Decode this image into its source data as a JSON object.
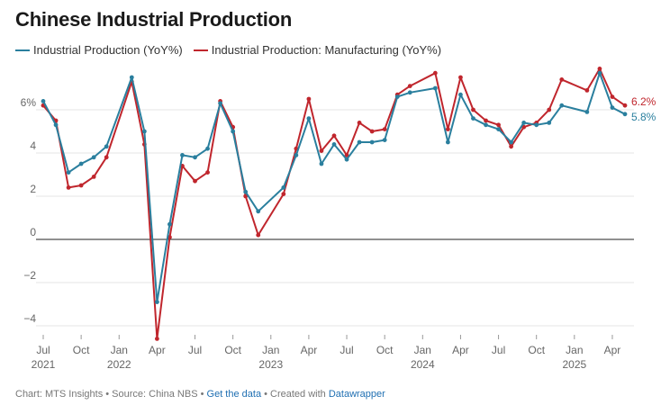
{
  "title": "Chinese Industrial Production",
  "footer": {
    "chart_prefix": "Chart: MTS Insights • Source: China NBS • ",
    "get_data": "Get the data",
    "created_with": " • Created with ",
    "datawrapper": "Datawrapper"
  },
  "colors": {
    "ip": "#2a7f9e",
    "mfg": "#c0262d"
  },
  "chart_data": {
    "type": "line",
    "title": "Chinese Industrial Production",
    "ylim": [
      -4.6,
      7.9
    ],
    "yticks": [
      {
        "value": 6,
        "label": "6%"
      },
      {
        "value": 4,
        "label": "4"
      },
      {
        "value": 2,
        "label": "2"
      },
      {
        "value": 0,
        "label": "0"
      },
      {
        "value": -2,
        "label": "−2"
      },
      {
        "value": -4,
        "label": "−4"
      }
    ],
    "xticks": [
      {
        "i": 0,
        "label": "Jul",
        "year": "2021"
      },
      {
        "i": 3,
        "label": "Oct",
        "year": ""
      },
      {
        "i": 6,
        "label": "Jan",
        "year": "2022"
      },
      {
        "i": 9,
        "label": "Apr",
        "year": ""
      },
      {
        "i": 12,
        "label": "Jul",
        "year": ""
      },
      {
        "i": 15,
        "label": "Oct",
        "year": ""
      },
      {
        "i": 18,
        "label": "Jan",
        "year": "2023"
      },
      {
        "i": 21,
        "label": "Apr",
        "year": ""
      },
      {
        "i": 24,
        "label": "Jul",
        "year": ""
      },
      {
        "i": 27,
        "label": "Oct",
        "year": ""
      },
      {
        "i": 30,
        "label": "Jan",
        "year": "2024"
      },
      {
        "i": 33,
        "label": "Apr",
        "year": ""
      },
      {
        "i": 36,
        "label": "Jul",
        "year": ""
      },
      {
        "i": 39,
        "label": "Oct",
        "year": ""
      },
      {
        "i": 42,
        "label": "Jan",
        "year": "2025"
      },
      {
        "i": 45,
        "label": "Apr",
        "year": ""
      }
    ],
    "series": [
      {
        "name": "Industrial Production (YoY%)",
        "end_label": "5.8%",
        "points": [
          [
            0,
            6.4
          ],
          [
            1,
            5.3
          ],
          [
            2,
            3.1
          ],
          [
            3,
            3.5
          ],
          [
            4,
            3.8
          ],
          [
            5,
            4.3
          ],
          [
            7,
            7.5
          ],
          [
            8,
            5.0
          ],
          [
            9,
            -2.9
          ],
          [
            10,
            0.7
          ],
          [
            11,
            3.9
          ],
          [
            12,
            3.8
          ],
          [
            13,
            4.2
          ],
          [
            14,
            6.3
          ],
          [
            15,
            5.0
          ],
          [
            16,
            2.2
          ],
          [
            17,
            1.3
          ],
          [
            19,
            2.4
          ],
          [
            20,
            3.9
          ],
          [
            21,
            5.6
          ],
          [
            22,
            3.5
          ],
          [
            23,
            4.4
          ],
          [
            24,
            3.7
          ],
          [
            25,
            4.5
          ],
          [
            26,
            4.5
          ],
          [
            27,
            4.6
          ],
          [
            28,
            6.6
          ],
          [
            29,
            6.8
          ],
          [
            31,
            7.0
          ],
          [
            32,
            4.5
          ],
          [
            33,
            6.7
          ],
          [
            34,
            5.6
          ],
          [
            35,
            5.3
          ],
          [
            36,
            5.1
          ],
          [
            37,
            4.5
          ],
          [
            38,
            5.4
          ],
          [
            39,
            5.3
          ],
          [
            40,
            5.4
          ],
          [
            41,
            6.2
          ],
          [
            43,
            5.9
          ],
          [
            44,
            7.7
          ],
          [
            45,
            6.1
          ],
          [
            46,
            5.8
          ]
        ]
      },
      {
        "name": "Industrial Production: Manufacturing (YoY%)",
        "end_label": "6.2%",
        "points": [
          [
            0,
            6.2
          ],
          [
            1,
            5.5
          ],
          [
            2,
            2.4
          ],
          [
            3,
            2.5
          ],
          [
            4,
            2.9
          ],
          [
            5,
            3.8
          ],
          [
            7,
            7.3
          ],
          [
            8,
            4.4
          ],
          [
            9,
            -4.6
          ],
          [
            10,
            0.1
          ],
          [
            11,
            3.4
          ],
          [
            12,
            2.7
          ],
          [
            13,
            3.1
          ],
          [
            14,
            6.4
          ],
          [
            15,
            5.2
          ],
          [
            16,
            2.0
          ],
          [
            17,
            0.2
          ],
          [
            19,
            2.1
          ],
          [
            20,
            4.2
          ],
          [
            21,
            6.5
          ],
          [
            22,
            4.1
          ],
          [
            23,
            4.8
          ],
          [
            24,
            3.9
          ],
          [
            25,
            5.4
          ],
          [
            26,
            5.0
          ],
          [
            27,
            5.1
          ],
          [
            28,
            6.7
          ],
          [
            29,
            7.1
          ],
          [
            31,
            7.7
          ],
          [
            32,
            5.1
          ],
          [
            33,
            7.5
          ],
          [
            34,
            6.0
          ],
          [
            35,
            5.5
          ],
          [
            36,
            5.3
          ],
          [
            37,
            4.3
          ],
          [
            38,
            5.2
          ],
          [
            39,
            5.4
          ],
          [
            40,
            6.0
          ],
          [
            41,
            7.4
          ],
          [
            43,
            6.9
          ],
          [
            44,
            7.9
          ],
          [
            45,
            6.6
          ],
          [
            46,
            6.2
          ]
        ]
      }
    ]
  }
}
